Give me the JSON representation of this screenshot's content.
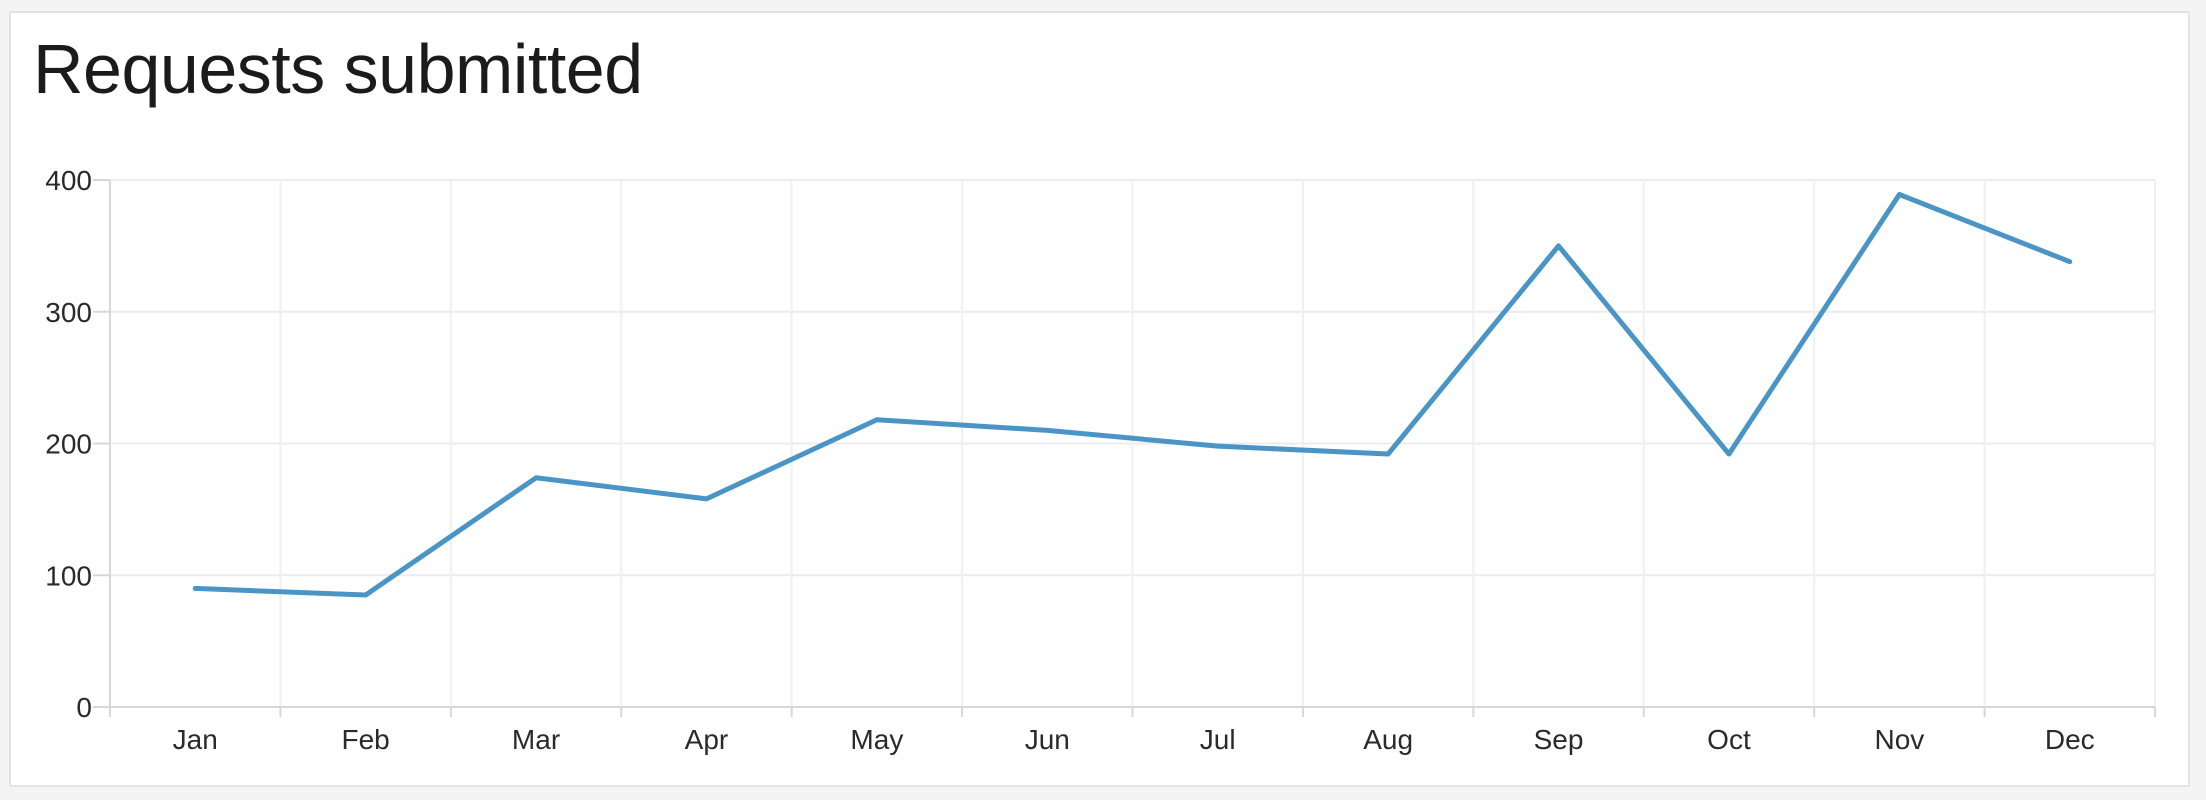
{
  "card": {
    "title": "Requests submitted"
  },
  "chart_data": {
    "type": "line",
    "title": "Requests submitted",
    "categories": [
      "Jan",
      "Feb",
      "Mar",
      "Apr",
      "May",
      "Jun",
      "Jul",
      "Aug",
      "Sep",
      "Oct",
      "Nov",
      "Dec"
    ],
    "values": [
      90,
      85,
      174,
      158,
      218,
      210,
      198,
      192,
      350,
      192,
      389,
      338
    ],
    "xlabel": "",
    "ylabel": "",
    "ylim": [
      0,
      400
    ],
    "y_ticks": [
      0,
      100,
      200,
      300,
      400
    ],
    "grid": true,
    "legend": "none",
    "line_color": "#4b95c6"
  },
  "colors": {
    "page_bg": "#f4f4f5",
    "card_bg": "#ffffff",
    "card_border": "#e3e3e5",
    "title_text": "#1b1b1d",
    "axis_line": "#d7d7d9",
    "grid_horizontal": "#ececec",
    "grid_vertical": "#f0f0f0",
    "tick_label": "#2a2a2c",
    "line": "#4b95c6"
  }
}
